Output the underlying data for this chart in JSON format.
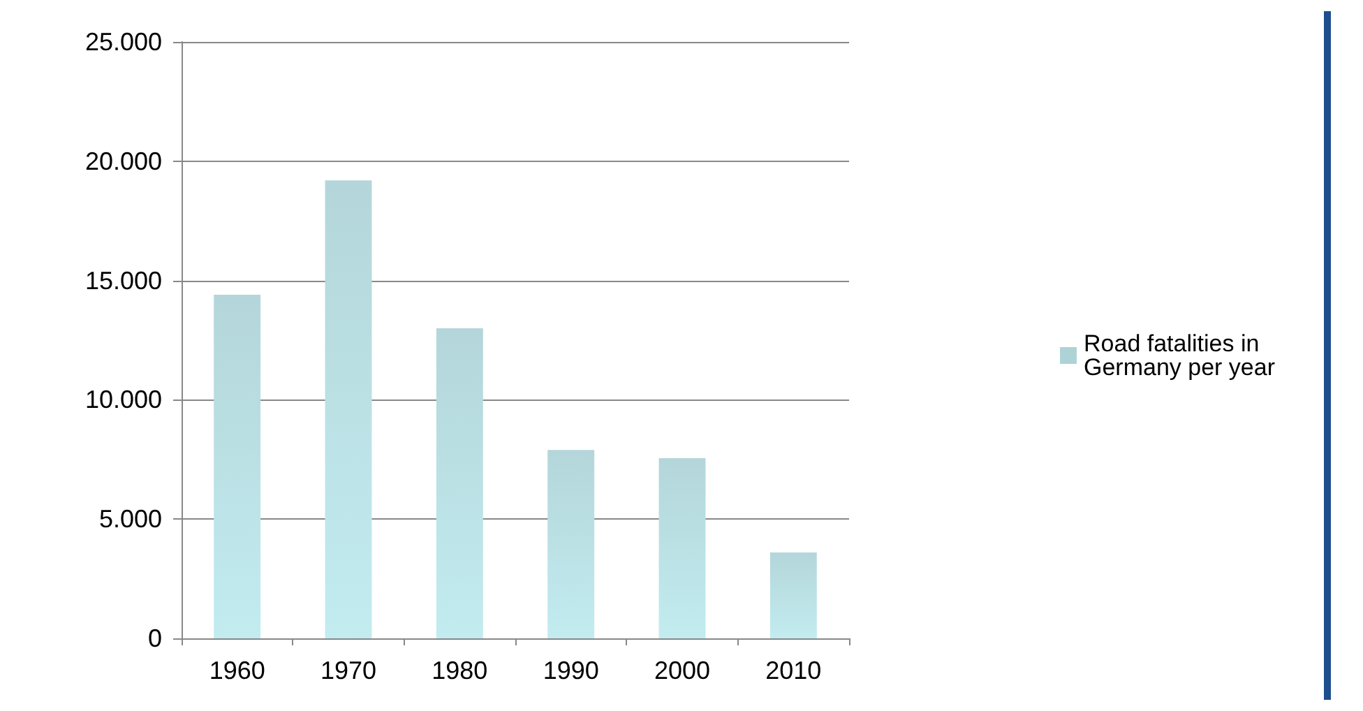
{
  "chart_data": {
    "type": "bar",
    "categories": [
      "1960",
      "1970",
      "1980",
      "1990",
      "2000",
      "2010"
    ],
    "series": [
      {
        "name": "Road fatalities in Germany per year",
        "color": "#aed3d7",
        "values": [
          14400,
          19200,
          13000,
          7900,
          7550,
          3600
        ]
      }
    ],
    "ylim": [
      0,
      25000
    ],
    "yticks": [
      {
        "value": 0,
        "label": "0"
      },
      {
        "value": 5000,
        "label": "5.000"
      },
      {
        "value": 10000,
        "label": "10.000"
      },
      {
        "value": 15000,
        "label": "15.000"
      },
      {
        "value": 20000,
        "label": "20.000"
      },
      {
        "value": 25000,
        "label": "25.000"
      }
    ],
    "grid": "y",
    "legend": "right"
  }
}
